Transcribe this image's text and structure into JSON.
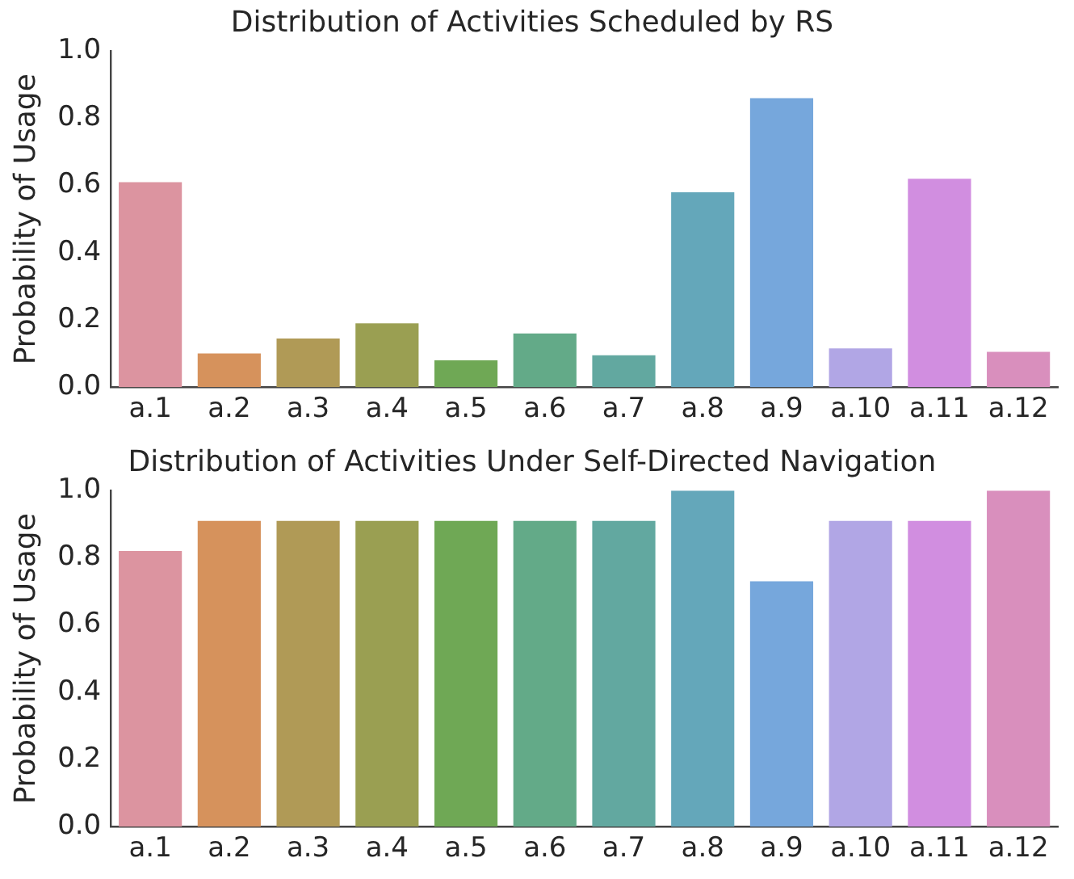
{
  "chart_data": [
    {
      "type": "bar",
      "title": "Distribution of Activities Scheduled by RS",
      "ylabel": "Probability of Usage",
      "categories": [
        "a.1",
        "a.2",
        "a.3",
        "a.4",
        "a.5",
        "a.6",
        "a.7",
        "a.8",
        "a.9",
        "a.10",
        "a.11",
        "a.12"
      ],
      "values": [
        0.61,
        0.1,
        0.145,
        0.19,
        0.08,
        0.16,
        0.095,
        0.58,
        0.86,
        0.115,
        0.62,
        0.105
      ],
      "colors": [
        "#dc94a0",
        "#d6925c",
        "#b09a56",
        "#9a9f52",
        "#6fa855",
        "#63aa88",
        "#62a8a0",
        "#64a7ba",
        "#76a7dc",
        "#b1a6e5",
        "#d18ee0",
        "#d98fbd"
      ],
      "ylim": [
        0,
        1
      ],
      "yticks": [
        {
          "value": 0,
          "label": "0.0"
        },
        {
          "value": 0.2,
          "label": "0.2"
        },
        {
          "value": 0.4,
          "label": "0.4"
        },
        {
          "value": 0.6,
          "label": "0.6"
        },
        {
          "value": 0.8,
          "label": "0.8"
        },
        {
          "value": 1,
          "label": "1.0"
        }
      ]
    },
    {
      "type": "bar",
      "title": "Distribution of Activities Under Self-Directed Navigation",
      "ylabel": "Probability of Usage",
      "categories": [
        "a.1",
        "a.2",
        "a.3",
        "a.4",
        "a.5",
        "a.6",
        "a.7",
        "a.8",
        "a.9",
        "a.10",
        "a.11",
        "a.12"
      ],
      "values": [
        0.82,
        0.91,
        0.91,
        0.91,
        0.91,
        0.91,
        0.91,
        1,
        0.73,
        0.91,
        0.91,
        1
      ],
      "colors": [
        "#dc94a0",
        "#d6925c",
        "#b09a56",
        "#9a9f52",
        "#6fa855",
        "#63aa88",
        "#62a8a0",
        "#64a7ba",
        "#76a7dc",
        "#b1a6e5",
        "#d18ee0",
        "#d98fbd"
      ],
      "ylim": [
        0,
        1
      ],
      "yticks": [
        {
          "value": 0,
          "label": "0.0"
        },
        {
          "value": 0.2,
          "label": "0.2"
        },
        {
          "value": 0.4,
          "label": "0.4"
        },
        {
          "value": 0.6,
          "label": "0.6"
        },
        {
          "value": 0.8,
          "label": "0.8"
        },
        {
          "value": 1,
          "label": "1.0"
        }
      ]
    }
  ]
}
